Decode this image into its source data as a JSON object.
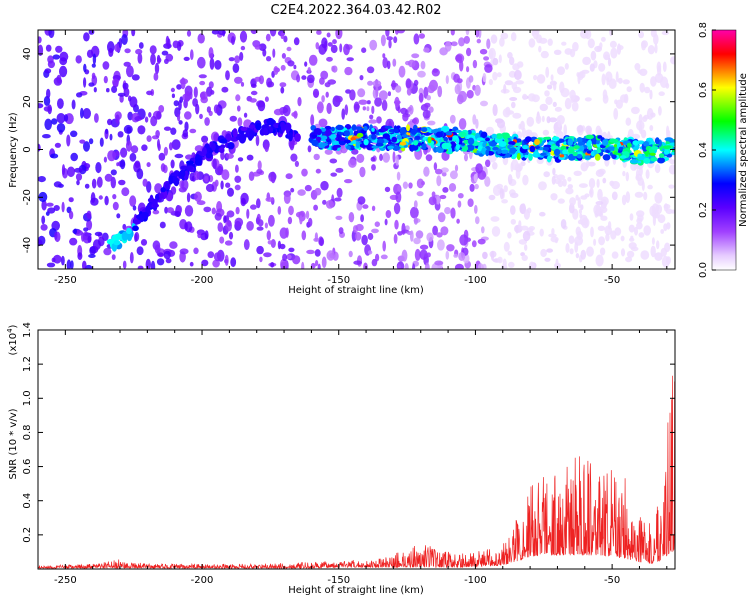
{
  "title": "C2E4.2022.364.03.42.R02",
  "colorbar": {
    "label": "Normalized spectral amplitude",
    "ticks": [
      "0.0",
      "0.2",
      "0.4",
      "0.6",
      "0.8"
    ],
    "tick_values": [
      0.0,
      0.2,
      0.4,
      0.6,
      0.8
    ],
    "range": [
      0.0,
      0.8
    ],
    "colors": [
      "#ffffff",
      "#d9b3ff",
      "#7f00ff",
      "#0000ff",
      "#00ffff",
      "#00ff00",
      "#ffff00",
      "#ff0000",
      "#ff00aa"
    ]
  },
  "chart_data": [
    {
      "type": "heatmap",
      "title": "C2E4.2022.364.03.42.R02",
      "xlabel": "Height of straight line (km)",
      "ylabel": "Frequency (Hz)",
      "xlim": [
        -260,
        -27
      ],
      "ylim": [
        -50,
        50
      ],
      "xticks": [
        -250,
        -200,
        -150,
        -100,
        -50
      ],
      "xtick_labels": [
        "-250",
        "-200",
        "-150",
        "-100",
        "-50"
      ],
      "yticks": [
        -40,
        -20,
        0,
        20,
        40
      ],
      "ytick_labels": [
        "-40",
        "-20",
        "0",
        "20",
        "40"
      ],
      "features": {
        "diagonal_track": [
          [
            -234,
            -41
          ],
          [
            -228,
            -36
          ],
          [
            -220,
            -25
          ],
          [
            -212,
            -15
          ],
          [
            -205,
            -8
          ],
          [
            -195,
            1
          ],
          [
            -185,
            6
          ],
          [
            -175,
            10
          ],
          [
            -165,
            6
          ]
        ],
        "horizontal_band": [
          [
            -160,
            5
          ],
          [
            -130,
            5
          ],
          [
            -110,
            4
          ],
          [
            -90,
            2
          ],
          [
            -70,
            0
          ],
          [
            -55,
            1
          ],
          [
            -40,
            -1
          ],
          [
            -27,
            0
          ]
        ]
      }
    },
    {
      "type": "line",
      "xlabel": "Height of straight line (km)",
      "ylabel": "SNR (10 * v/v)",
      "scale_label": "(x10",
      "scale_exp": "4",
      "scale_close": ")",
      "xlim": [
        -260,
        -27
      ],
      "ylim": [
        0,
        1.4
      ],
      "xticks": [
        -250,
        -200,
        -150,
        -100,
        -50
      ],
      "xtick_labels": [
        "-250",
        "-200",
        "-150",
        "-100",
        "-50"
      ],
      "yticks": [
        0.2,
        0.4,
        0.6,
        0.8,
        1.0,
        1.2,
        1.4
      ],
      "ytick_labels": [
        "0.2",
        "0.4",
        "0.6",
        "0.8",
        "1.0",
        "1.2",
        "1.4"
      ],
      "color": "#ee2222",
      "series": [
        {
          "x": [
            -260,
            -240,
            -229,
            -220,
            -200,
            -180,
            -160,
            -150,
            -140,
            -132,
            -125,
            -118,
            -113,
            -105,
            -98,
            -92,
            -88,
            -84,
            -80,
            -75,
            -70,
            -65,
            -60,
            -57,
            -55,
            -50,
            -45,
            -40,
            -35,
            -32,
            -30,
            -28,
            -27
          ],
          "envelope": [
            0.02,
            0.03,
            0.06,
            0.03,
            0.03,
            0.03,
            0.04,
            0.05,
            0.05,
            0.07,
            0.13,
            0.15,
            0.11,
            0.09,
            0.11,
            0.13,
            0.18,
            0.35,
            0.52,
            0.6,
            0.58,
            0.64,
            0.72,
            0.86,
            0.55,
            0.6,
            0.55,
            0.32,
            0.25,
            0.65,
            0.8,
            1.15,
            1.38
          ],
          "baseline": [
            0.005,
            0.005,
            0.005,
            0.005,
            0.005,
            0.005,
            0.005,
            0.01,
            0.01,
            0.01,
            0.01,
            0.01,
            0.01,
            0.01,
            0.015,
            0.02,
            0.03,
            0.05,
            0.07,
            0.08,
            0.08,
            0.08,
            0.08,
            0.08,
            0.08,
            0.07,
            0.06,
            0.04,
            0.03,
            0.05,
            0.08,
            0.1,
            0.12
          ]
        }
      ]
    }
  ]
}
